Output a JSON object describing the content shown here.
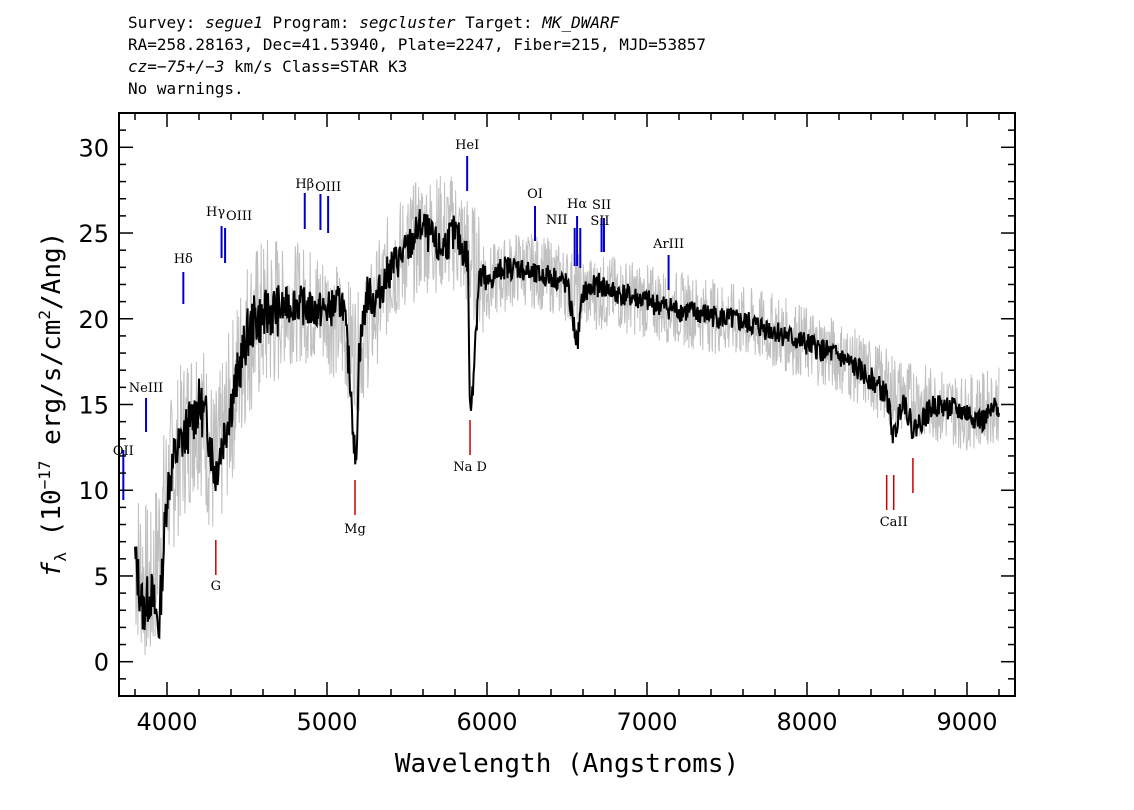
{
  "header": {
    "line1": {
      "survey_label": "Survey: ",
      "survey": "segue1",
      "program_label": " Program: ",
      "program": "segcluster",
      "target_label": " Target: ",
      "target": "MK_DWARF"
    },
    "line2": "RA=258.28163, Dec=41.53940, Plate=2247, Fiber=215, MJD=53857",
    "line3": {
      "cz_prefix": "cz=−75+/−3",
      "rest": " km/s Class=STAR K3"
    },
    "line4": "No warnings."
  },
  "chart_data": {
    "type": "line",
    "xlabel": "Wavelength (Angstroms)",
    "ylabel": "f_λ (10^-17 erg/s/cm²/Ang)",
    "xlim": [
      3700,
      9300
    ],
    "ylim": [
      -2,
      32
    ],
    "x_ticks": [
      4000,
      5000,
      6000,
      7000,
      8000,
      9000
    ],
    "y_ticks": [
      0,
      5,
      10,
      15,
      20,
      25,
      30
    ],
    "series": [
      {
        "color": "#000000",
        "x": [
          3800,
          3850,
          3900,
          3950,
          4000,
          4050,
          4100,
          4150,
          4200,
          4250,
          4300,
          4350,
          4400,
          4450,
          4500,
          4550,
          4600,
          4650,
          4700,
          4800,
          4900,
          5000,
          5100,
          5150,
          5180,
          5200,
          5250,
          5300,
          5400,
          5500,
          5590,
          5700,
          5800,
          5880,
          5895,
          5950,
          6000,
          6100,
          6200,
          6300,
          6400,
          6500,
          6563,
          6600,
          6700,
          6800,
          6900,
          7000,
          7200,
          7400,
          7600,
          7800,
          8000,
          8200,
          8400,
          8500,
          8542,
          8600,
          8662,
          8800,
          9000,
          9100,
          9200
        ],
        "y": [
          6,
          3,
          4,
          2,
          10,
          12,
          13,
          14,
          15,
          14,
          11,
          13,
          15,
          17,
          19,
          20,
          20,
          20.5,
          20.5,
          21,
          20.5,
          20.5,
          21,
          16,
          11,
          18,
          21.5,
          21,
          23,
          24,
          25.5,
          24,
          25,
          23.5,
          14,
          22.5,
          22,
          23,
          23,
          22.5,
          22.5,
          22,
          18.5,
          21.5,
          22,
          21.5,
          21.3,
          21,
          20.5,
          20.2,
          19.8,
          19.3,
          18.5,
          17.8,
          16.5,
          15.5,
          13,
          15.5,
          13.5,
          15,
          14.5,
          14,
          15
        ]
      },
      {
        "color": "#c0c0c0",
        "x": [
          3800,
          3900,
          4000,
          4100,
          4200,
          4300,
          4400,
          4500,
          4600,
          4800,
          5000,
          5200,
          5400,
          5600,
          5800,
          6000,
          6200,
          6400,
          6600,
          6800,
          7000,
          7400,
          7800,
          8200,
          8600,
          9000,
          9200
        ],
        "y": [
          6,
          4,
          10,
          13,
          15,
          11,
          15,
          19,
          20,
          21,
          20.5,
          18,
          23,
          25,
          25,
          22,
          23,
          22.5,
          21.5,
          21.5,
          21,
          20.2,
          19.3,
          17.8,
          15.5,
          14.5,
          15
        ]
      }
    ],
    "emission_lines": [
      {
        "label": "OII",
        "wavelength": 3727
      },
      {
        "label": "NeIII",
        "wavelength": 3869
      },
      {
        "label": "Hδ",
        "wavelength": 4102
      },
      {
        "label": "Hγ",
        "wavelength": 4341
      },
      {
        "label": "OIII",
        "wavelength": 4363
      },
      {
        "label": "Hβ",
        "wavelength": 4861
      },
      {
        "label": "OIII",
        "wavelength": 4959
      },
      {
        "label": "OIII",
        "wavelength": 5007
      },
      {
        "label": "HeI",
        "wavelength": 5876
      },
      {
        "label": "OI",
        "wavelength": 6300
      },
      {
        "label": "NII",
        "wavelength": 6548
      },
      {
        "label": "Hα",
        "wavelength": 6563
      },
      {
        "label": "NII",
        "wavelength": 6583
      },
      {
        "label": "SII",
        "wavelength": 6716
      },
      {
        "label": "SII",
        "wavelength": 6731
      },
      {
        "label": "ArIII",
        "wavelength": 7135
      }
    ],
    "absorption_lines": [
      {
        "label": "G",
        "wavelength": 4305
      },
      {
        "label": "Mg",
        "wavelength": 5175
      },
      {
        "label": "Na D",
        "wavelength": 5894
      },
      {
        "label": "CaII",
        "wavelength": 8498
      },
      {
        "label": "CaII",
        "wavelength": 8542
      },
      {
        "label": "CaII",
        "wavelength": 8662
      }
    ],
    "colors": {
      "emission": "#0000cc",
      "absorption": "#cc0000",
      "grid": "none"
    }
  }
}
